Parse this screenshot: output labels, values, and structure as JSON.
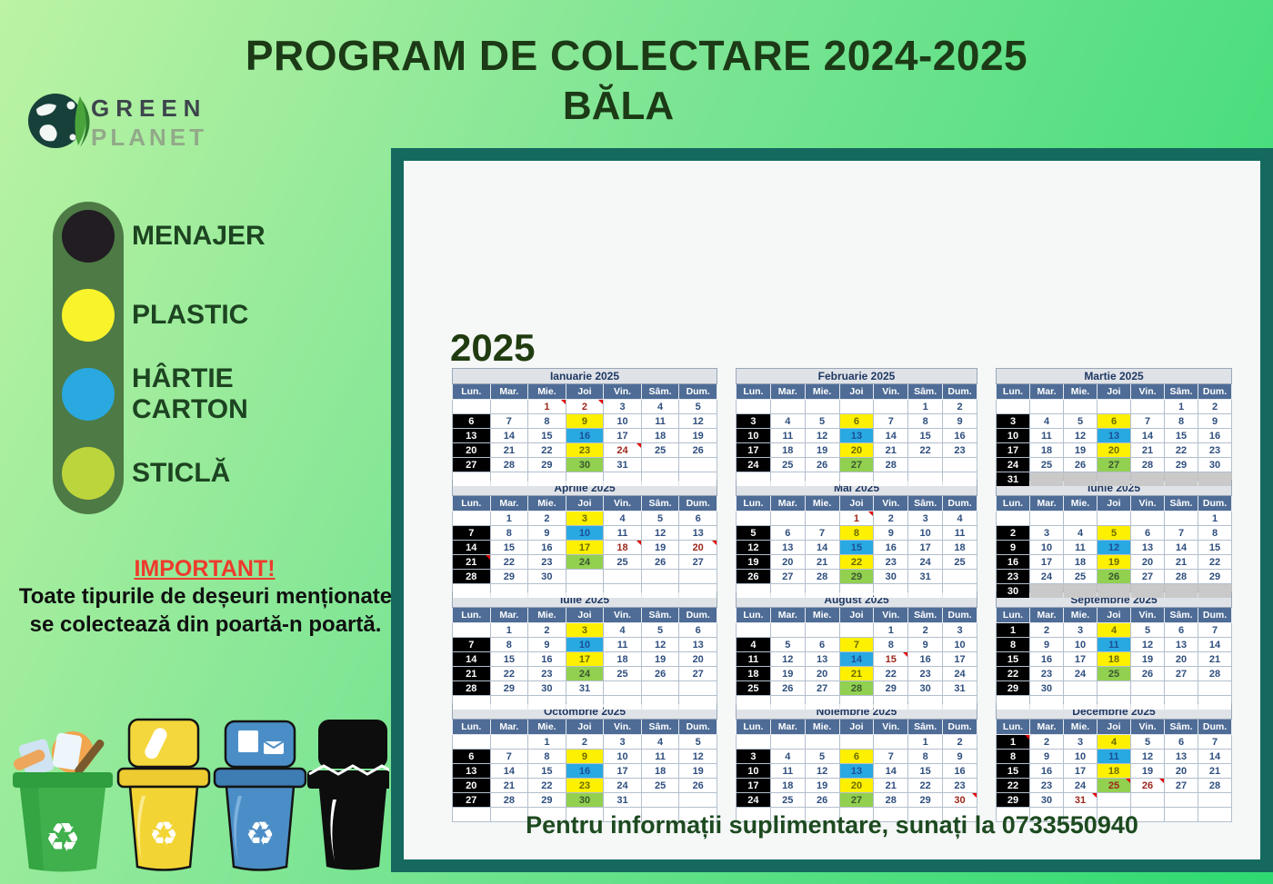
{
  "header": {
    "title": "PROGRAM DE COLECTARE 2024-2025",
    "subtitle": "BĂLA"
  },
  "logo": {
    "line1": "GREEN",
    "line2": "PLANET",
    "icon": "earth-leaf-logo"
  },
  "legend": {
    "pill_color": "#4d7a45",
    "items": [
      {
        "label": "MENAJER",
        "color": "#211d22"
      },
      {
        "label": "PLASTIC",
        "color": "#f8f32b"
      },
      {
        "label": "HÂRTIE",
        "label2": "CARTON",
        "color": "#2aa9e0"
      },
      {
        "label": "STICLĂ",
        "color": "#bdd53c"
      }
    ]
  },
  "important": {
    "title": "IMPORTANT! ",
    "line1": "Toate tipurile de deșeuri menționate",
    "line2": "se colectează din poartă-n poartă."
  },
  "calendar": {
    "year": "2025",
    "day_headers": [
      "Lun.",
      "Mar.",
      "Mie.",
      "Joi",
      "Vin.",
      "Sâm.",
      "Dum."
    ],
    "colors": {
      "menajer_black": "#000000",
      "plastic_yellow": "#fdf000",
      "hartie_blue": "#29a9e1",
      "sticla_green": "#92d050",
      "holiday_red": "#9c271b",
      "header_slate": "#4e6c96",
      "panel_border_teal": "#15695e"
    },
    "months": [
      {
        "name": "Ianuarie 2025",
        "first_dow": 2,
        "days": 31,
        "black": [
          6,
          13,
          20,
          27
        ],
        "yellow": [
          9,
          23
        ],
        "blue": [
          16
        ],
        "green": [
          30
        ],
        "red": [
          1,
          2,
          24
        ],
        "markers": [
          1,
          2,
          24
        ],
        "gray_row6": false
      },
      {
        "name": "Februarie 2025",
        "first_dow": 5,
        "days": 28,
        "black": [
          3,
          10,
          17,
          24
        ],
        "yellow": [
          6,
          20
        ],
        "blue": [
          13
        ],
        "green": [
          27
        ],
        "red": [],
        "markers": [],
        "gray_row6": false
      },
      {
        "name": "Martie 2025",
        "first_dow": 5,
        "days": 31,
        "black": [
          3,
          10,
          17,
          24,
          31
        ],
        "yellow": [
          6,
          20
        ],
        "blue": [
          13
        ],
        "green": [
          27
        ],
        "red": [],
        "markers": [],
        "gray_row6": true
      },
      {
        "name": "Aprilie 2025",
        "first_dow": 1,
        "days": 30,
        "black": [
          7,
          14,
          21,
          28
        ],
        "yellow": [
          3,
          17
        ],
        "blue": [
          10
        ],
        "green": [
          24
        ],
        "red": [
          18,
          20
        ],
        "markers": [
          18,
          20,
          21
        ],
        "gray_row6": false
      },
      {
        "name": "Mai 2025",
        "first_dow": 3,
        "days": 31,
        "black": [
          5,
          12,
          19,
          26
        ],
        "yellow": [
          8,
          22
        ],
        "blue": [
          15
        ],
        "green": [
          29
        ],
        "red": [
          1
        ],
        "markers": [
          1
        ],
        "gray_row6": false
      },
      {
        "name": "Iunie 2025",
        "first_dow": 6,
        "days": 30,
        "black": [
          2,
          9,
          16,
          23,
          30
        ],
        "yellow": [
          5,
          19
        ],
        "blue": [
          12
        ],
        "green": [
          26
        ],
        "red": [],
        "markers": [],
        "gray_row6": true
      },
      {
        "name": "Iulie 2025",
        "first_dow": 1,
        "days": 31,
        "black": [
          7,
          14,
          21,
          28
        ],
        "yellow": [
          3,
          17
        ],
        "blue": [
          10
        ],
        "green": [
          24
        ],
        "red": [],
        "markers": [],
        "gray_row6": false
      },
      {
        "name": "August 2025",
        "first_dow": 4,
        "days": 31,
        "black": [
          4,
          11,
          18,
          25
        ],
        "yellow": [
          7,
          21
        ],
        "blue": [
          14
        ],
        "green": [
          28
        ],
        "red": [
          15
        ],
        "markers": [
          15
        ],
        "gray_row6": false
      },
      {
        "name": "Septembrie 2025",
        "first_dow": 0,
        "days": 30,
        "black": [
          1,
          8,
          15,
          22,
          29
        ],
        "yellow": [
          4,
          18
        ],
        "blue": [
          11
        ],
        "green": [
          25
        ],
        "red": [],
        "markers": [],
        "gray_row6": false
      },
      {
        "name": "Octombrie 2025",
        "first_dow": 2,
        "days": 31,
        "black": [
          6,
          13,
          20,
          27
        ],
        "yellow": [
          9,
          23
        ],
        "blue": [
          16
        ],
        "green": [
          30
        ],
        "red": [],
        "markers": [],
        "gray_row6": false
      },
      {
        "name": "Noiembrie 2025",
        "first_dow": 5,
        "days": 30,
        "black": [
          3,
          10,
          17,
          24
        ],
        "yellow": [
          6,
          20
        ],
        "blue": [
          13
        ],
        "green": [
          27
        ],
        "red": [
          30
        ],
        "markers": [
          30
        ],
        "gray_row6": false
      },
      {
        "name": "Decembrie 2025",
        "first_dow": 0,
        "days": 31,
        "black": [
          1,
          8,
          15,
          22,
          29
        ],
        "yellow": [
          4,
          18
        ],
        "blue": [
          11
        ],
        "green": [
          25
        ],
        "red": [
          25,
          26,
          31
        ],
        "markers": [
          1,
          25,
          26,
          31
        ],
        "gray_row6": false
      }
    ]
  },
  "footer": {
    "contact": "Pentru informații suplimentare, sunați la 0733550940"
  },
  "icons": {
    "bins": [
      "glass-full-bin",
      "plastic-bin",
      "paper-carton-bin",
      "household-bin"
    ]
  }
}
